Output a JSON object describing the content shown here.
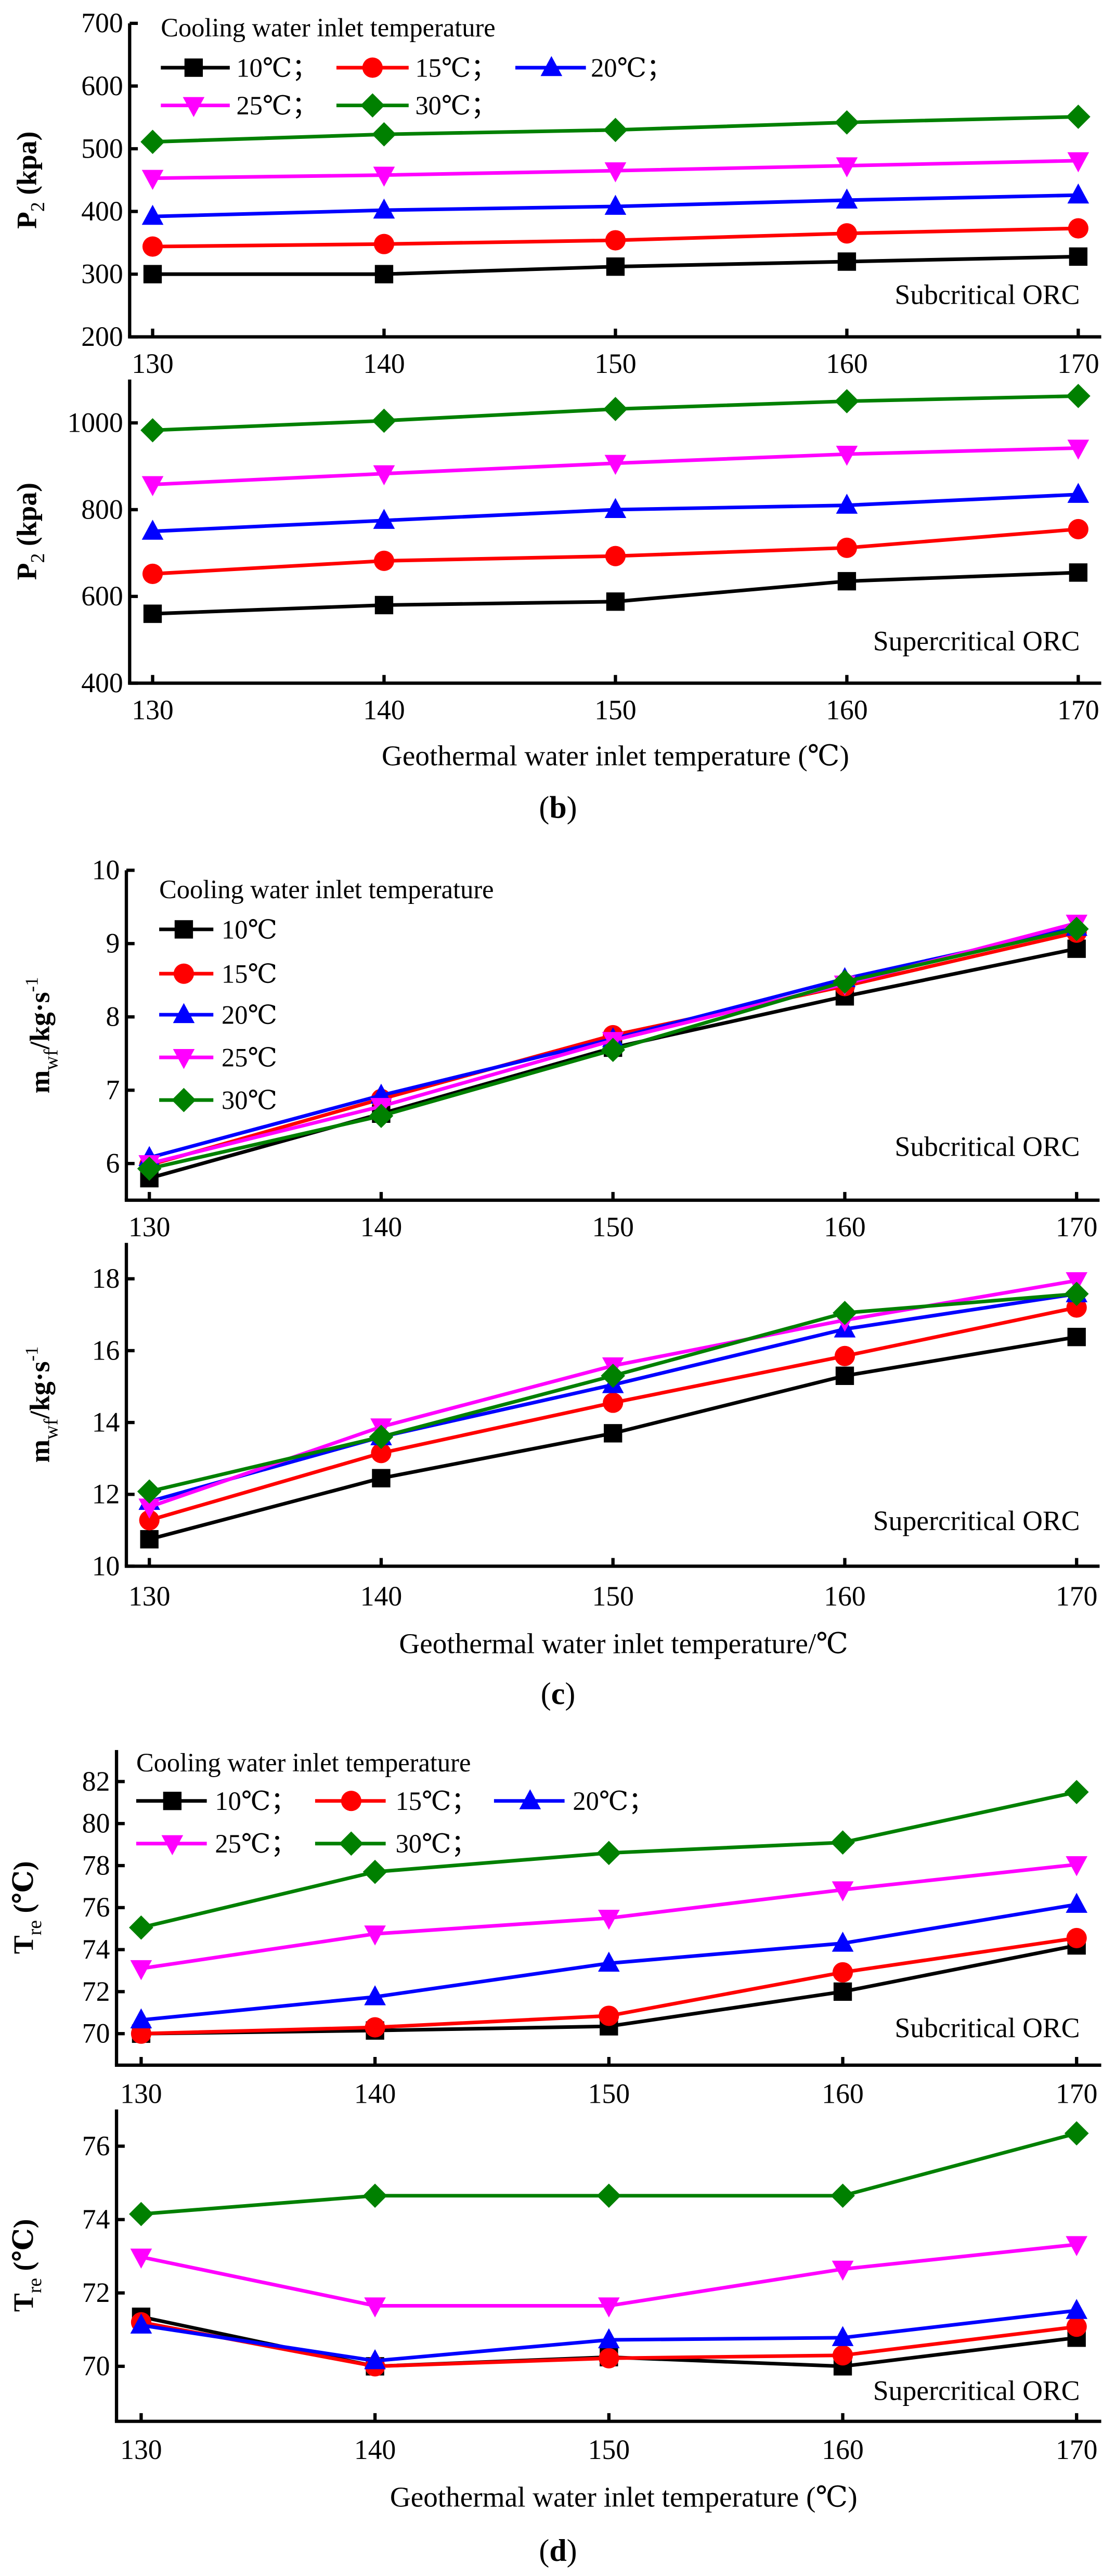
{
  "colors": {
    "10": "#000000",
    "15": "#ff0000",
    "20": "#0000ff",
    "25": "#ff00ff",
    "30": "#008000"
  },
  "legend_title": "Cooling water inlet temperature",
  "panels": [
    {
      "label_open": "(",
      "label": "b",
      "label_close": ")",
      "xlabel": "Geothermal water inlet temperature (℃)"
    },
    {
      "label_open": "(",
      "label": "c",
      "label_close": ")",
      "xlabel": "Geothermal water inlet temperature/℃"
    },
    {
      "label_open": "(",
      "label": "d",
      "label_close": ")",
      "xlabel": "Geothermal water inlet temperature (℃)"
    }
  ],
  "chart_data": [
    {
      "type": "line",
      "panel": "b",
      "annotation": "Subcritical ORC",
      "ylabel_main": "P",
      "ylabel_sub": "2",
      "ylabel_rest": " (kpa)",
      "x": [
        130,
        140,
        150,
        160,
        170
      ],
      "xticks": [
        "130",
        "140",
        "150",
        "160",
        "170"
      ],
      "ylim": [
        200,
        700
      ],
      "yticks": [
        200,
        300,
        400,
        500,
        600,
        700
      ],
      "legend": {
        "style": "rows",
        "entries": [
          "10℃；",
          "15℃；",
          "20℃；",
          "25℃；",
          "30℃；"
        ]
      },
      "series": [
        {
          "name": "10℃",
          "marker": "square",
          "values": [
            300,
            300,
            312,
            320,
            328
          ]
        },
        {
          "name": "15℃",
          "marker": "circle",
          "values": [
            344,
            348,
            354,
            365,
            373
          ]
        },
        {
          "name": "20℃",
          "marker": "triangle-up",
          "values": [
            392,
            402,
            408,
            418,
            426
          ]
        },
        {
          "name": "25℃",
          "marker": "triangle-down",
          "values": [
            453,
            458,
            465,
            473,
            481
          ]
        },
        {
          "name": "30℃",
          "marker": "diamond",
          "values": [
            511,
            523,
            530,
            542,
            551
          ]
        }
      ]
    },
    {
      "type": "line",
      "panel": "b",
      "annotation": "Supercritical ORC",
      "ylabel_main": "P",
      "ylabel_sub": "2",
      "ylabel_rest": " (kpa)",
      "x": [
        130,
        140,
        150,
        160,
        170
      ],
      "xticks": [
        "130",
        "140",
        "150",
        "160",
        "170"
      ],
      "ylim": [
        400,
        1100
      ],
      "yticks": [
        400,
        600,
        800,
        1000
      ],
      "series": [
        {
          "name": "10℃",
          "marker": "square",
          "values": [
            560,
            580,
            588,
            635,
            655
          ]
        },
        {
          "name": "15℃",
          "marker": "circle",
          "values": [
            652,
            682,
            693,
            712,
            755
          ]
        },
        {
          "name": "20℃",
          "marker": "triangle-up",
          "values": [
            750,
            775,
            800,
            810,
            835
          ]
        },
        {
          "name": "25℃",
          "marker": "triangle-down",
          "values": [
            858,
            883,
            907,
            928,
            942
          ]
        },
        {
          "name": "30℃",
          "marker": "diamond",
          "values": [
            983,
            1005,
            1032,
            1050,
            1062
          ]
        }
      ]
    },
    {
      "type": "line",
      "panel": "c",
      "annotation": "Subcritical ORC",
      "ylabel_main": "m",
      "ylabel_sub": "wf",
      "ylabel_rest": "/kg·s",
      "ylabel_sup": "-1",
      "x": [
        130,
        140,
        150,
        160,
        170
      ],
      "xticks": [
        "130",
        "140",
        "150",
        "160",
        "170"
      ],
      "ylim": [
        5.5,
        10
      ],
      "yticks": [
        6,
        7,
        8,
        9,
        10
      ],
      "legend": {
        "style": "column",
        "entries": [
          "10℃",
          "15℃",
          "20℃",
          "25℃",
          "30℃"
        ]
      },
      "series": [
        {
          "name": "10℃",
          "marker": "square",
          "values": [
            5.8,
            6.68,
            7.58,
            8.28,
            8.93
          ]
        },
        {
          "name": "15℃",
          "marker": "circle",
          "values": [
            5.98,
            6.88,
            7.75,
            8.42,
            9.15
          ]
        },
        {
          "name": "20℃",
          "marker": "triangle-up",
          "values": [
            6.08,
            6.93,
            7.7,
            8.52,
            9.22
          ]
        },
        {
          "name": "25℃",
          "marker": "triangle-down",
          "values": [
            6.0,
            6.78,
            7.68,
            8.45,
            9.28
          ]
        },
        {
          "name": "30℃",
          "marker": "diamond",
          "values": [
            5.93,
            6.65,
            7.55,
            8.48,
            9.2
          ]
        }
      ]
    },
    {
      "type": "line",
      "panel": "c",
      "annotation": "Supercritical ORC",
      "ylabel_main": "m",
      "ylabel_sub": "wf",
      "ylabel_rest": "/kg·s",
      "ylabel_sup": "-1",
      "x": [
        130,
        140,
        150,
        160,
        170
      ],
      "xticks": [
        "130",
        "140",
        "150",
        "160",
        "170"
      ],
      "ylim": [
        10,
        19
      ],
      "yticks": [
        10,
        12,
        14,
        16,
        18
      ],
      "series": [
        {
          "name": "10℃",
          "marker": "square",
          "values": [
            10.75,
            12.45,
            13.7,
            15.3,
            16.38
          ]
        },
        {
          "name": "15℃",
          "marker": "circle",
          "values": [
            11.28,
            13.15,
            14.55,
            15.85,
            17.2
          ]
        },
        {
          "name": "20℃",
          "marker": "triangle-up",
          "values": [
            11.8,
            13.6,
            15.05,
            16.6,
            17.58
          ]
        },
        {
          "name": "25℃",
          "marker": "triangle-down",
          "values": [
            11.65,
            13.88,
            15.58,
            16.85,
            17.95
          ]
        },
        {
          "name": "30℃",
          "marker": "diamond",
          "values": [
            12.08,
            13.6,
            15.3,
            17.05,
            17.58
          ]
        }
      ]
    },
    {
      "type": "line",
      "panel": "d",
      "annotation": "Subcritical ORC",
      "ylabel_main": "T",
      "ylabel_sub": "re",
      "ylabel_rest": " (℃)",
      "x": [
        130,
        140,
        150,
        160,
        170
      ],
      "xticks": [
        "130",
        "140",
        "150",
        "160",
        "170"
      ],
      "ylim": [
        68.5,
        83.5
      ],
      "yticks": [
        70,
        72,
        74,
        76,
        78,
        80,
        82
      ],
      "legend": {
        "style": "rows",
        "entries": [
          "10℃；",
          "15℃；",
          "20℃；",
          "25℃；",
          "30℃；"
        ]
      },
      "series": [
        {
          "name": "10℃",
          "marker": "square",
          "values": [
            70.0,
            70.15,
            70.35,
            72.0,
            74.2
          ]
        },
        {
          "name": "15℃",
          "marker": "circle",
          "values": [
            70.0,
            70.3,
            70.85,
            72.92,
            74.55
          ]
        },
        {
          "name": "20℃",
          "marker": "triangle-up",
          "values": [
            70.65,
            71.75,
            73.35,
            74.3,
            76.15
          ]
        },
        {
          "name": "25℃",
          "marker": "triangle-down",
          "values": [
            73.1,
            74.75,
            75.5,
            76.85,
            78.05
          ]
        },
        {
          "name": "30℃",
          "marker": "diamond",
          "values": [
            75.05,
            77.7,
            78.6,
            79.1,
            81.5
          ]
        }
      ]
    },
    {
      "type": "line",
      "panel": "d",
      "annotation": "Supercritical ORC",
      "ylabel_main": "T",
      "ylabel_sub": "re",
      "ylabel_rest": " (℃)",
      "x": [
        130,
        140,
        150,
        160,
        170
      ],
      "xticks": [
        "130",
        "140",
        "150",
        "160",
        "170"
      ],
      "ylim": [
        68.5,
        77
      ],
      "yticks": [
        70,
        72,
        74,
        76
      ],
      "series": [
        {
          "name": "10℃",
          "marker": "square",
          "values": [
            71.35,
            70.0,
            70.25,
            70.0,
            70.78
          ]
        },
        {
          "name": "15℃",
          "marker": "circle",
          "values": [
            71.2,
            70.0,
            70.22,
            70.3,
            71.08
          ]
        },
        {
          "name": "20℃",
          "marker": "triangle-up",
          "values": [
            71.12,
            70.15,
            70.72,
            70.78,
            71.52
          ]
        },
        {
          "name": "25℃",
          "marker": "triangle-down",
          "values": [
            72.98,
            71.65,
            71.65,
            72.65,
            73.32
          ]
        },
        {
          "name": "30℃",
          "marker": "diamond",
          "values": [
            74.15,
            74.65,
            74.65,
            74.65,
            76.35
          ]
        }
      ]
    }
  ]
}
